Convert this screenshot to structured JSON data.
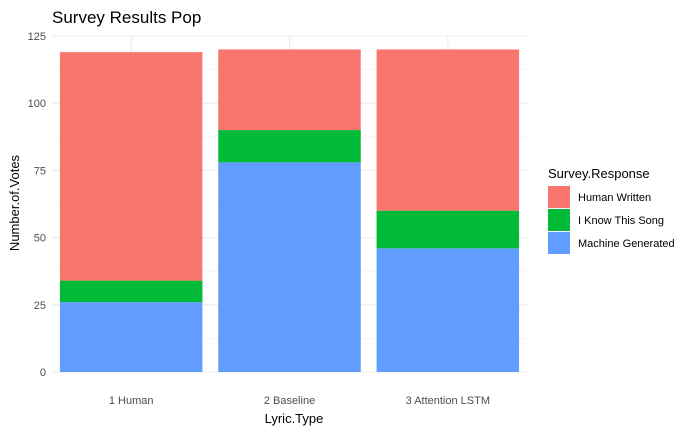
{
  "chart_data": {
    "type": "bar",
    "stacked": true,
    "title": "Survey Results Pop",
    "xlabel": "Lyric.Type",
    "ylabel": "Number.of.Votes",
    "categories": [
      "1 Human",
      "2 Baseline",
      "3 Attention LSTM"
    ],
    "ylim": [
      0,
      125
    ],
    "yticks": [
      0,
      25,
      50,
      75,
      100,
      125
    ],
    "grid": true,
    "legend": {
      "title": "Survey.Response",
      "position": "right"
    },
    "series": [
      {
        "name": "Machine Generated",
        "color": "#619CFF",
        "values": [
          26,
          78,
          46
        ]
      },
      {
        "name": "I Know This Song",
        "color": "#00BA38",
        "values": [
          8,
          12,
          14
        ]
      },
      {
        "name": "Human Written",
        "color": "#F8766D",
        "values": [
          85,
          30,
          60
        ]
      }
    ],
    "legend_order": [
      "Human Written",
      "I Know This Song",
      "Machine Generated"
    ]
  }
}
